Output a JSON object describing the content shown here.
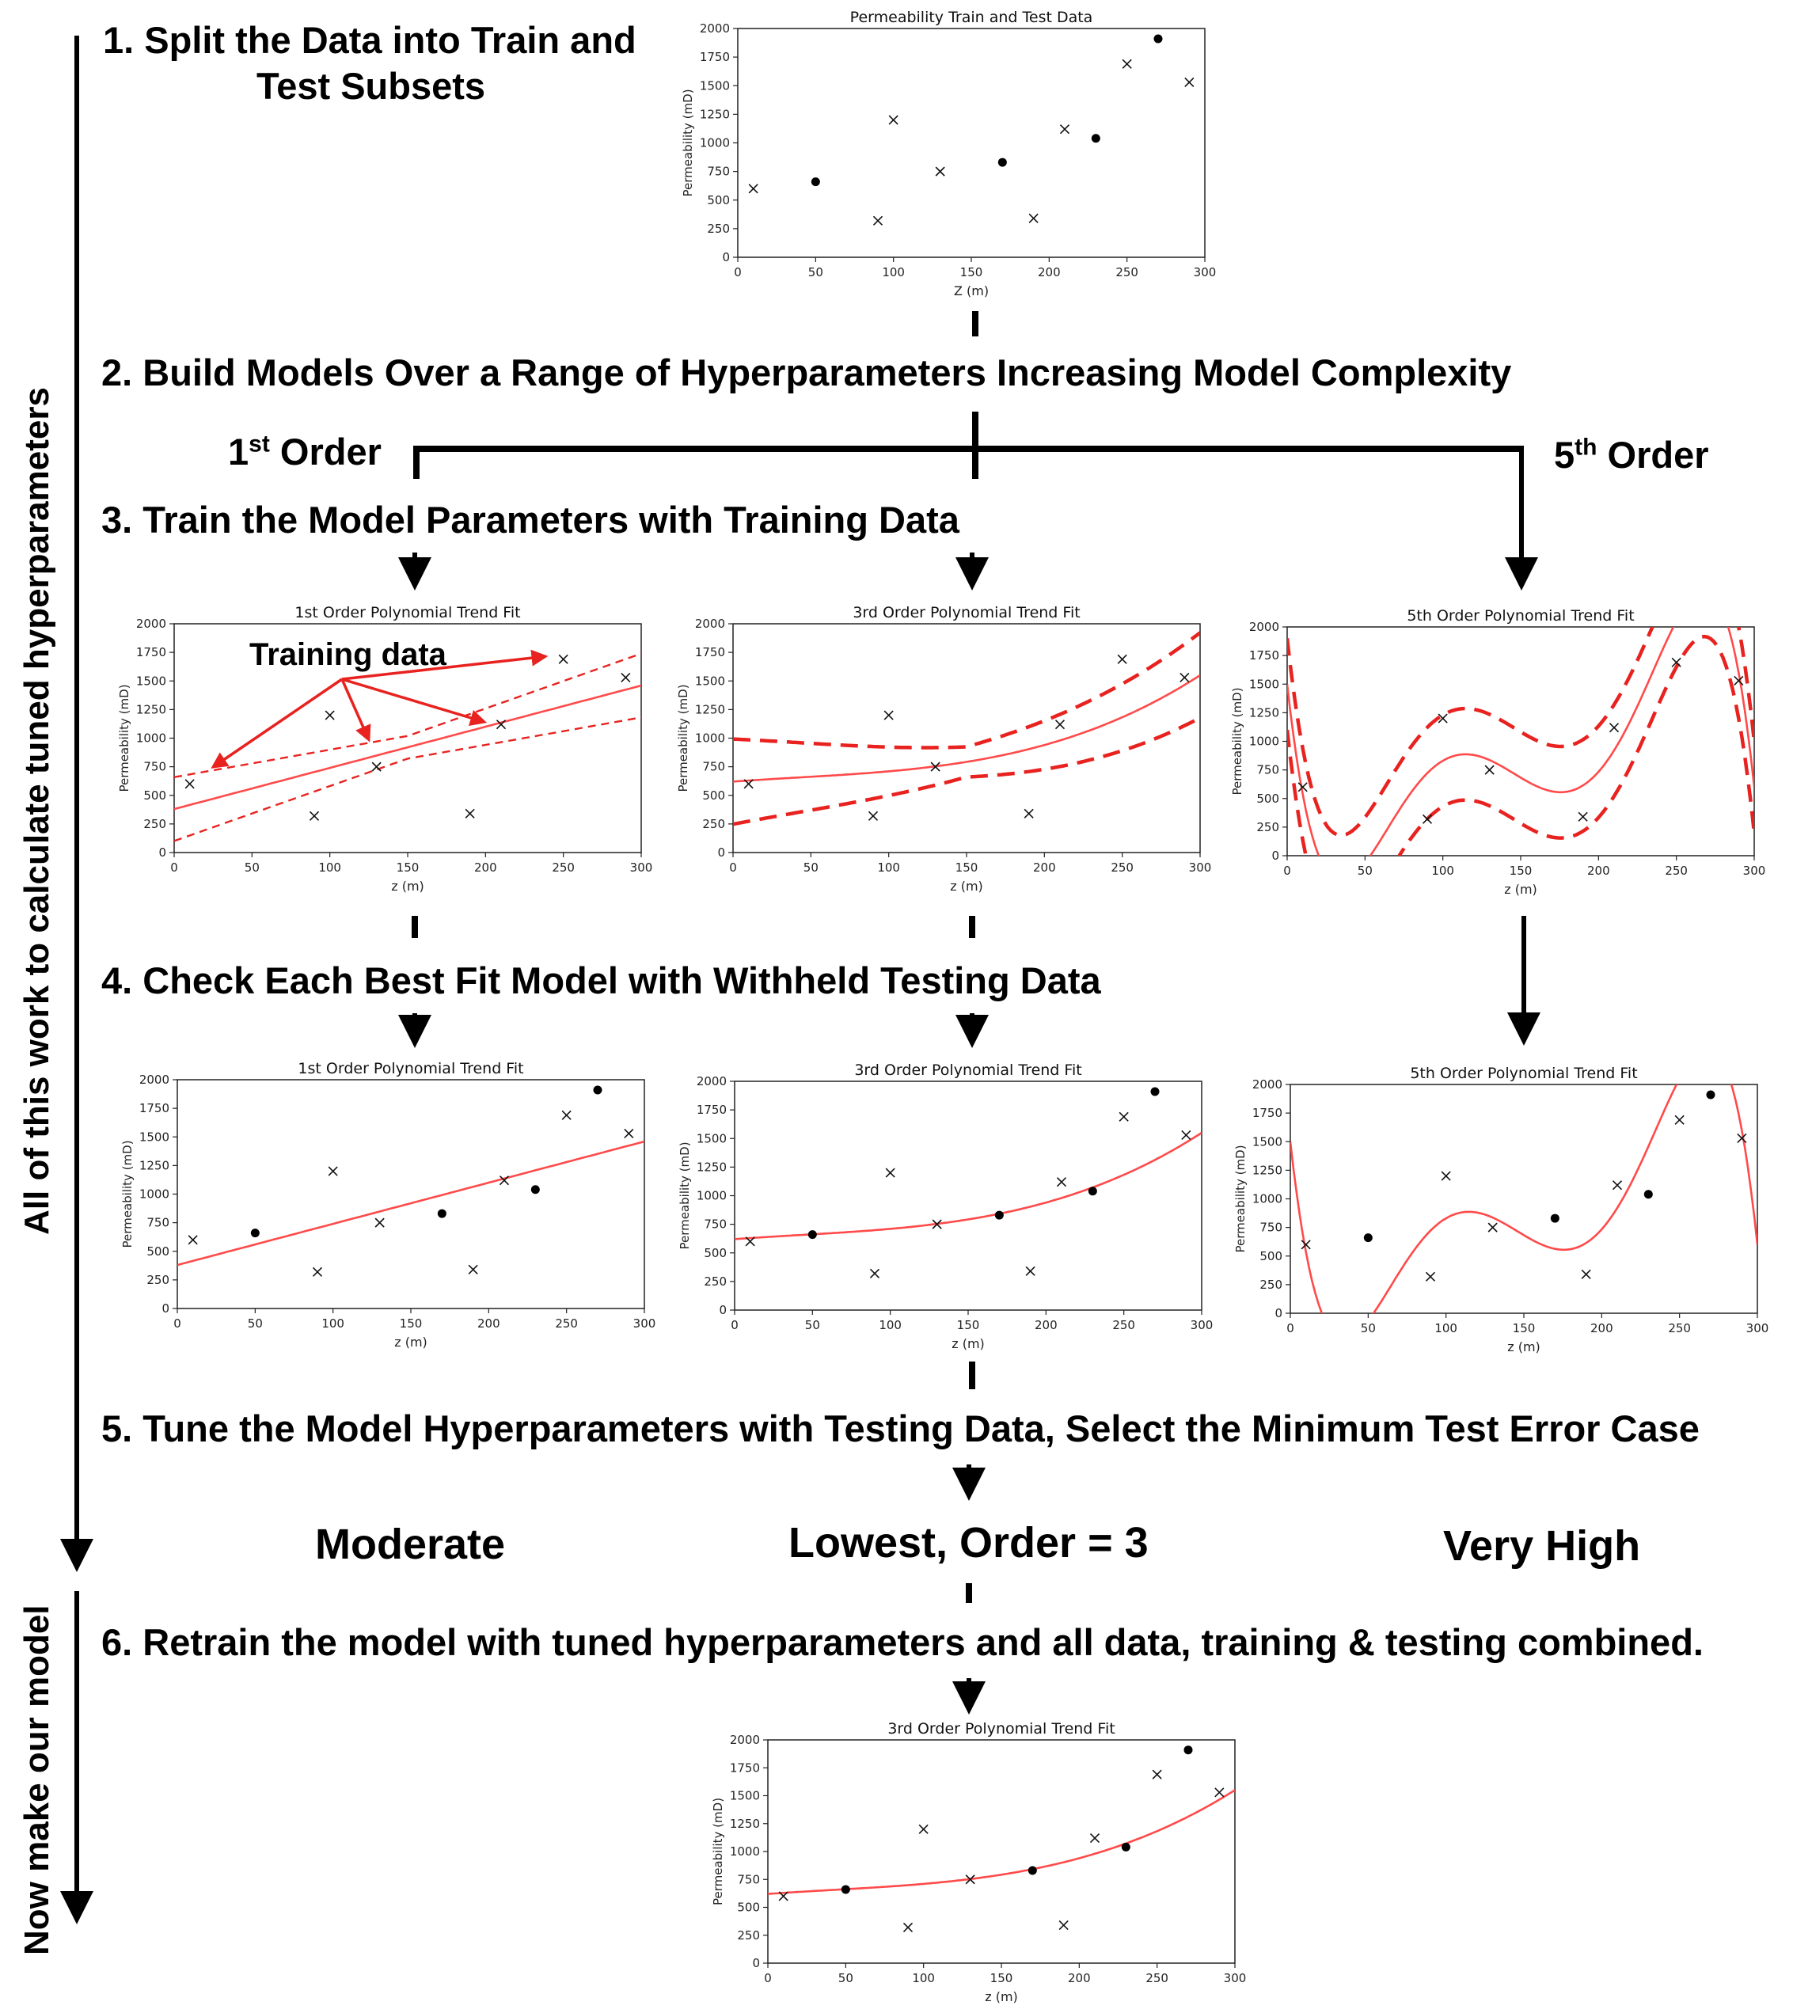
{
  "side_labels": {
    "upper": "All of this work to calculate tuned hyperparameters",
    "lower": "Now make our model"
  },
  "steps": {
    "s1_line1": "1. Split the Data into Train and",
    "s1_line2": "Test Subsets",
    "s2": "2. Build Models Over a Range of Hyperparameters Increasing Model Complexity",
    "s3": "3. Train the Model Parameters with Training Data",
    "s4": "4. Check Each Best Fit Model with Withheld Testing Data",
    "s5": "5. Tune the Model Hyperparameters with Testing Data, Select the Minimum Test Error Case",
    "s6": "6. Retrain the model with tuned hyperparameters and all data, training & testing combined."
  },
  "branches": {
    "first": {
      "base": "1",
      "sup": "st",
      "rest": " Order"
    },
    "fifth": {
      "base": "5",
      "sup": "th",
      "rest": " Order"
    }
  },
  "error_results": {
    "first": "Moderate",
    "third": "Lowest, Order = 3",
    "fifth": "Very High"
  },
  "annotation": {
    "training_data": "Training data"
  },
  "colors": {
    "fit": "#ff4a4a",
    "annotation": "#e8221f",
    "marker": "#000000"
  },
  "chart_data": [
    {
      "id": "split",
      "type": "scatter",
      "title": "Permeability Train and Test Data",
      "xlabel": "Z (m)",
      "ylabel": "Permeability (mD)",
      "xlim": [
        0,
        300
      ],
      "ylim": [
        0,
        2000
      ],
      "xticks": [
        0,
        50,
        100,
        150,
        200,
        250,
        300
      ],
      "yticks": [
        0,
        250,
        500,
        750,
        1000,
        1250,
        1500,
        1750,
        2000
      ],
      "train_points": [
        [
          10,
          600
        ],
        [
          90,
          320
        ],
        [
          100,
          1200
        ],
        [
          130,
          750
        ],
        [
          190,
          340
        ],
        [
          210,
          1120
        ],
        [
          250,
          1690
        ],
        [
          290,
          1530
        ]
      ],
      "test_points": [
        [
          50,
          660
        ],
        [
          170,
          830
        ],
        [
          230,
          1040
        ],
        [
          270,
          1910
        ]
      ],
      "fit_order": 0,
      "show_test": true
    },
    {
      "id": "train1",
      "type": "line",
      "title": "1st Order Polynomial Trend Fit",
      "xlabel": "z (m)",
      "ylabel": "Permeability (mD)",
      "xlim": [
        0,
        300
      ],
      "ylim": [
        0,
        2000
      ],
      "xticks": [
        0,
        50,
        100,
        150,
        200,
        250,
        300
      ],
      "yticks": [
        0,
        250,
        500,
        750,
        1000,
        1250,
        1500,
        1750,
        2000
      ],
      "train_points": [
        [
          10,
          600
        ],
        [
          90,
          320
        ],
        [
          100,
          1200
        ],
        [
          130,
          750
        ],
        [
          190,
          340
        ],
        [
          210,
          1120
        ],
        [
          250,
          1690
        ],
        [
          290,
          1530
        ]
      ],
      "test_points": [],
      "fit_order": 1,
      "fit_coef": [
        380,
        3.6
      ],
      "band": 180,
      "band_scale": true,
      "show_test": false
    },
    {
      "id": "train3",
      "type": "line",
      "title": "3rd Order Polynomial Trend Fit",
      "xlabel": "z (m)",
      "ylabel": "Permeability (mD)",
      "xlim": [
        0,
        300
      ],
      "ylim": [
        0,
        2000
      ],
      "xticks": [
        0,
        50,
        100,
        150,
        200,
        250,
        300
      ],
      "yticks": [
        0,
        250,
        500,
        750,
        1000,
        1250,
        1500,
        1750,
        2000
      ],
      "train_points": [
        [
          10,
          600
        ],
        [
          90,
          320
        ],
        [
          100,
          1200
        ],
        [
          130,
          750
        ],
        [
          190,
          340
        ],
        [
          210,
          1120
        ],
        [
          250,
          1690
        ],
        [
          290,
          1530
        ]
      ],
      "test_points": [],
      "fit_order": 3,
      "fit_coef": [
        620,
        1.0,
        -0.005,
        4e-05
      ],
      "band": 240,
      "band_scale": true,
      "show_test": false
    },
    {
      "id": "train5",
      "type": "line",
      "title": "5th Order Polynomial Trend Fit",
      "xlabel": "z (m)",
      "ylabel": "Permeability (mD)",
      "xlim": [
        0,
        300
      ],
      "ylim": [
        0,
        2000
      ],
      "xticks": [
        0,
        50,
        100,
        150,
        200,
        250,
        300
      ],
      "yticks": [
        0,
        250,
        500,
        750,
        1000,
        1250,
        1500,
        1750,
        2000
      ],
      "train_points": [
        [
          10,
          600
        ],
        [
          90,
          320
        ],
        [
          100,
          1200
        ],
        [
          130,
          750
        ],
        [
          190,
          340
        ],
        [
          210,
          1120
        ],
        [
          250,
          1690
        ],
        [
          290,
          1530
        ]
      ],
      "test_points": [],
      "fit_order": 5,
      "band": 400,
      "band_scale": false,
      "show_test": false
    },
    {
      "id": "test1",
      "type": "line",
      "title": "1st Order Polynomial Trend Fit",
      "xlabel": "z (m)",
      "ylabel": "Permeability (mD)",
      "xlim": [
        0,
        300
      ],
      "ylim": [
        0,
        2000
      ],
      "xticks": [
        0,
        50,
        100,
        150,
        200,
        250,
        300
      ],
      "yticks": [
        0,
        250,
        500,
        750,
        1000,
        1250,
        1500,
        1750,
        2000
      ],
      "train_points": [
        [
          10,
          600
        ],
        [
          90,
          320
        ],
        [
          100,
          1200
        ],
        [
          130,
          750
        ],
        [
          190,
          340
        ],
        [
          210,
          1120
        ],
        [
          250,
          1690
        ],
        [
          290,
          1530
        ]
      ],
      "test_points": [
        [
          50,
          660
        ],
        [
          170,
          830
        ],
        [
          230,
          1040
        ],
        [
          270,
          1910
        ]
      ],
      "fit_order": 1,
      "fit_coef": [
        380,
        3.6
      ],
      "band": 0,
      "show_test": true
    },
    {
      "id": "test3",
      "type": "line",
      "title": "3rd Order Polynomial Trend Fit",
      "xlabel": "z (m)",
      "ylabel": "Permeability (mD)",
      "xlim": [
        0,
        300
      ],
      "ylim": [
        0,
        2000
      ],
      "xticks": [
        0,
        50,
        100,
        150,
        200,
        250,
        300
      ],
      "yticks": [
        0,
        250,
        500,
        750,
        1000,
        1250,
        1500,
        1750,
        2000
      ],
      "train_points": [
        [
          10,
          600
        ],
        [
          90,
          320
        ],
        [
          100,
          1200
        ],
        [
          130,
          750
        ],
        [
          190,
          340
        ],
        [
          210,
          1120
        ],
        [
          250,
          1690
        ],
        [
          290,
          1530
        ]
      ],
      "test_points": [
        [
          50,
          660
        ],
        [
          170,
          830
        ],
        [
          230,
          1040
        ],
        [
          270,
          1910
        ]
      ],
      "fit_order": 3,
      "fit_coef": [
        620,
        1.0,
        -0.005,
        4e-05
      ],
      "band": 0,
      "show_test": true
    },
    {
      "id": "test5",
      "type": "line",
      "title": "5th Order Polynomial Trend Fit",
      "xlabel": "z (m)",
      "ylabel": "Permeability (mD)",
      "xlim": [
        0,
        300
      ],
      "ylim": [
        0,
        2000
      ],
      "xticks": [
        0,
        50,
        100,
        150,
        200,
        250,
        300
      ],
      "yticks": [
        0,
        250,
        500,
        750,
        1000,
        1250,
        1500,
        1750,
        2000
      ],
      "train_points": [
        [
          10,
          600
        ],
        [
          90,
          320
        ],
        [
          100,
          1200
        ],
        [
          130,
          750
        ],
        [
          190,
          340
        ],
        [
          210,
          1120
        ],
        [
          250,
          1690
        ],
        [
          290,
          1530
        ]
      ],
      "test_points": [
        [
          50,
          660
        ],
        [
          170,
          830
        ],
        [
          230,
          1040
        ],
        [
          270,
          1910
        ]
      ],
      "fit_order": 5,
      "band": 0,
      "show_test": true
    },
    {
      "id": "final",
      "type": "line",
      "title": "3rd Order Polynomial Trend Fit",
      "xlabel": "z (m)",
      "ylabel": "Permeability (mD)",
      "xlim": [
        0,
        300
      ],
      "ylim": [
        0,
        2000
      ],
      "xticks": [
        0,
        50,
        100,
        150,
        200,
        250,
        300
      ],
      "yticks": [
        0,
        250,
        500,
        750,
        1000,
        1250,
        1500,
        1750,
        2000
      ],
      "train_points": [
        [
          10,
          600
        ],
        [
          90,
          320
        ],
        [
          100,
          1200
        ],
        [
          130,
          750
        ],
        [
          190,
          340
        ],
        [
          210,
          1120
        ],
        [
          250,
          1690
        ],
        [
          290,
          1530
        ]
      ],
      "test_points": [
        [
          50,
          660
        ],
        [
          170,
          830
        ],
        [
          230,
          1040
        ],
        [
          270,
          1910
        ]
      ],
      "fit_order": 3,
      "fit_coef": [
        620,
        1.0,
        -0.005,
        4e-05
      ],
      "band": 0,
      "show_test": true
    }
  ]
}
